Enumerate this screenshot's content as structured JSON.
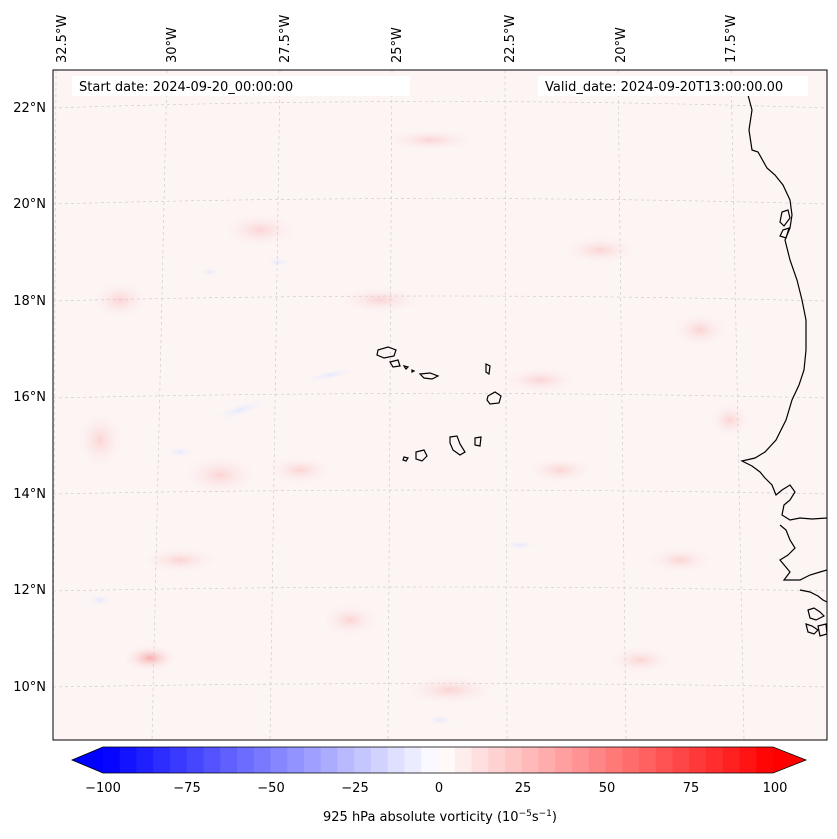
{
  "header": {
    "start_date": "Start date: 2024-09-20_00:00:00",
    "valid_date": "Valid_date: 2024-09-20T13:00:00.00"
  },
  "axes": {
    "lon_labels": [
      "32.5°W",
      "30°W",
      "27.5°W",
      "25°W",
      "22.5°W",
      "20°W",
      "17.5°W"
    ],
    "lat_labels": [
      "22°N",
      "20°N",
      "18°N",
      "16°N",
      "14°N",
      "12°N",
      "10°N"
    ]
  },
  "colorbar": {
    "ticks": [
      "−100",
      "−75",
      "−50",
      "−25",
      "0",
      "25",
      "50",
      "75",
      "100"
    ],
    "label_main": "925 hPa absolute vorticity (10",
    "label_exp1": "−5",
    "label_mid": "s",
    "label_exp2": "−1",
    "label_end": ")",
    "min": -100,
    "max": 100,
    "levels": 41,
    "neg_color": "#0000ff",
    "mid_color": "#ffffff",
    "pos_color": "#ff0000"
  },
  "map": {
    "background_color": "#fdf6f6",
    "coast_color": "#000000",
    "grid_color": "#c8c8c8"
  }
}
